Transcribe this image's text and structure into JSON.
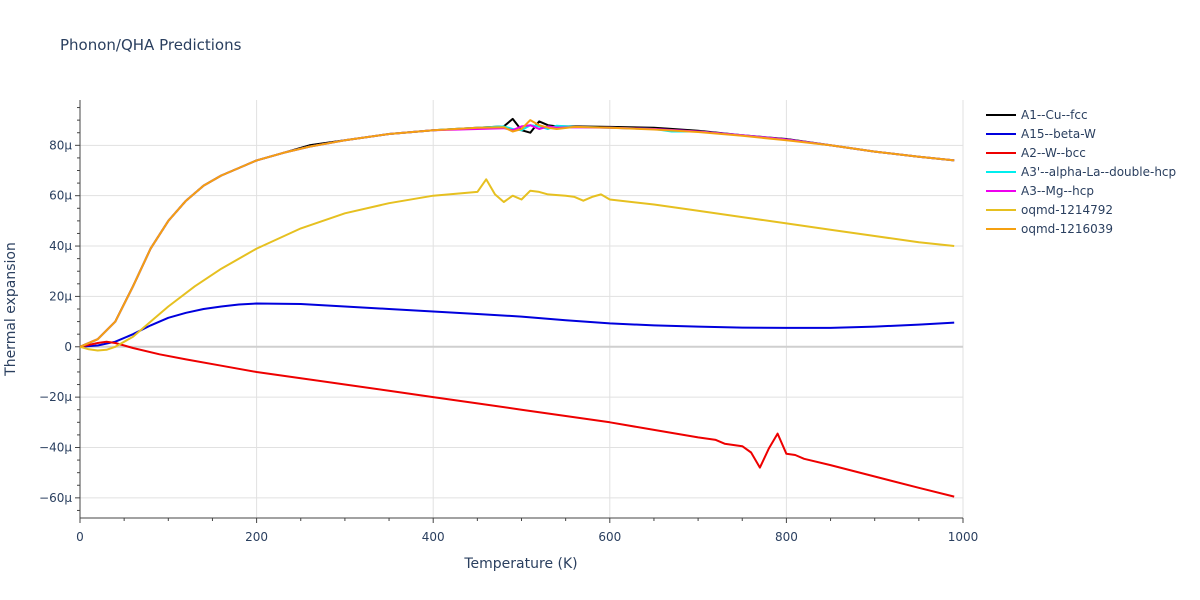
{
  "chart_data": {
    "type": "line",
    "title": "Phonon/QHA Predictions",
    "xlabel": "Temperature (K)",
    "ylabel": "Thermal expansion",
    "xlim": [
      0,
      1000
    ],
    "ylim": [
      -68,
      98
    ],
    "x_ticks": [
      0,
      200,
      400,
      600,
      800,
      1000
    ],
    "y_ticks": [
      -60,
      -40,
      -20,
      0,
      20,
      40,
      60,
      80
    ],
    "y_tick_labels": [
      "−60μ",
      "−40μ",
      "−20μ",
      "0",
      "20μ",
      "40μ",
      "60μ",
      "80μ"
    ],
    "grid": true,
    "legend_position": "right",
    "series": [
      {
        "name": "A1--Cu--fcc",
        "color": "#000000",
        "x": [
          0,
          20,
          40,
          60,
          80,
          100,
          120,
          140,
          160,
          180,
          200,
          230,
          260,
          300,
          350,
          400,
          450,
          480,
          490,
          500,
          510,
          520,
          530,
          540,
          560,
          600,
          650,
          700,
          750,
          800,
          850,
          900,
          950,
          990
        ],
        "y": [
          0,
          3,
          10,
          24,
          39,
          50,
          58,
          64,
          68,
          71,
          74,
          77,
          80,
          82,
          84.5,
          86,
          87,
          87.5,
          90.5,
          86,
          85,
          89.5,
          88,
          87.5,
          87.5,
          87.3,
          87,
          85.8,
          84,
          82.5,
          80,
          77.5,
          75.5,
          74
        ]
      },
      {
        "name": "A15--beta-W",
        "color": "#0000dd",
        "x": [
          0,
          20,
          40,
          60,
          80,
          100,
          120,
          140,
          160,
          180,
          200,
          250,
          300,
          350,
          400,
          450,
          500,
          550,
          600,
          650,
          700,
          750,
          800,
          850,
          900,
          950,
          990
        ],
        "y": [
          0,
          0.5,
          2,
          5,
          8.5,
          11.5,
          13.5,
          15,
          16,
          16.8,
          17.2,
          17,
          16,
          15,
          14,
          13,
          12,
          10.5,
          9.3,
          8.5,
          8,
          7.6,
          7.5,
          7.5,
          8,
          8.8,
          9.6
        ]
      },
      {
        "name": "A2--W--bcc",
        "color": "#ee0000",
        "x": [
          0,
          20,
          30,
          40,
          60,
          90,
          120,
          160,
          200,
          250,
          300,
          350,
          400,
          450,
          500,
          550,
          600,
          650,
          700,
          720,
          730,
          750,
          760,
          770,
          780,
          790,
          800,
          810,
          820,
          850,
          900,
          950,
          990
        ],
        "y": [
          0,
          1.5,
          2,
          1.5,
          -0.5,
          -3,
          -5,
          -7.5,
          -10,
          -12.5,
          -15,
          -17.5,
          -20,
          -22.5,
          -25,
          -27.5,
          -30,
          -33,
          -36,
          -37,
          -38.5,
          -39.5,
          -42,
          -48,
          -40.5,
          -34.5,
          -42.5,
          -43,
          -44.5,
          -47,
          -51.5,
          -56,
          -59.5
        ]
      },
      {
        "name": "A3'--alpha-La--double-hcp",
        "color": "#00eeee",
        "x": [
          0,
          20,
          40,
          60,
          80,
          100,
          120,
          140,
          160,
          180,
          200,
          230,
          260,
          300,
          350,
          400,
          450,
          480,
          490,
          500,
          510,
          520,
          530,
          540,
          560,
          600,
          650,
          670,
          700,
          750,
          800,
          850,
          900,
          950,
          990
        ],
        "y": [
          0,
          3,
          10,
          24,
          39,
          50,
          58,
          64,
          68,
          71,
          74,
          77,
          79.5,
          82,
          84.5,
          86,
          87,
          87.5,
          86.5,
          86,
          88,
          87.5,
          86.5,
          87.8,
          87.3,
          87,
          86.5,
          85.5,
          85.5,
          84,
          82.3,
          80,
          77.5,
          75.5,
          74
        ]
      },
      {
        "name": "A3--Mg--hcp",
        "color": "#ee00ee",
        "x": [
          0,
          20,
          40,
          60,
          80,
          100,
          120,
          140,
          160,
          180,
          200,
          230,
          260,
          300,
          350,
          400,
          450,
          480,
          490,
          500,
          510,
          520,
          530,
          540,
          560,
          600,
          650,
          700,
          750,
          800,
          850,
          900,
          950,
          990
        ],
        "y": [
          0,
          3,
          10,
          24,
          39,
          50,
          58,
          64,
          68,
          71,
          74,
          77,
          79.5,
          82,
          84.5,
          86,
          86.5,
          86.8,
          86,
          87.5,
          88,
          86.5,
          87.5,
          87,
          87.2,
          87,
          86.5,
          85.5,
          84,
          82.3,
          80,
          77.5,
          75.5,
          74
        ]
      },
      {
        "name": "oqmd-1214792",
        "color": "#e6c020",
        "x": [
          0,
          10,
          20,
          30,
          40,
          60,
          80,
          100,
          130,
          160,
          200,
          250,
          300,
          350,
          400,
          450,
          460,
          470,
          480,
          490,
          500,
          510,
          520,
          530,
          550,
          560,
          570,
          580,
          590,
          600,
          650,
          700,
          750,
          800,
          850,
          900,
          950,
          990
        ],
        "y": [
          0,
          -1,
          -1.5,
          -1.2,
          0,
          4,
          10,
          16,
          24,
          31,
          39,
          47,
          53,
          57,
          60,
          61.5,
          66.5,
          60.5,
          57.5,
          60,
          58.5,
          62,
          61.5,
          60.5,
          60,
          59.5,
          58,
          59.5,
          60.5,
          58.5,
          56.5,
          54,
          51.5,
          49,
          46.5,
          44,
          41.5,
          40
        ]
      },
      {
        "name": "oqmd-1216039",
        "color": "#f5a010",
        "x": [
          0,
          20,
          40,
          60,
          80,
          100,
          120,
          140,
          160,
          180,
          200,
          230,
          260,
          300,
          350,
          400,
          450,
          480,
          490,
          500,
          510,
          520,
          530,
          540,
          560,
          600,
          650,
          700,
          750,
          800,
          850,
          900,
          950,
          990
        ],
        "y": [
          0,
          3,
          10,
          24,
          39,
          50,
          58,
          64,
          68,
          71,
          74,
          77,
          79.5,
          82,
          84.5,
          86,
          87,
          87.2,
          85.5,
          86.5,
          90,
          88,
          87,
          86.5,
          87.3,
          87,
          86.3,
          85.3,
          83.8,
          82,
          80,
          77.5,
          75.5,
          74
        ]
      }
    ]
  }
}
